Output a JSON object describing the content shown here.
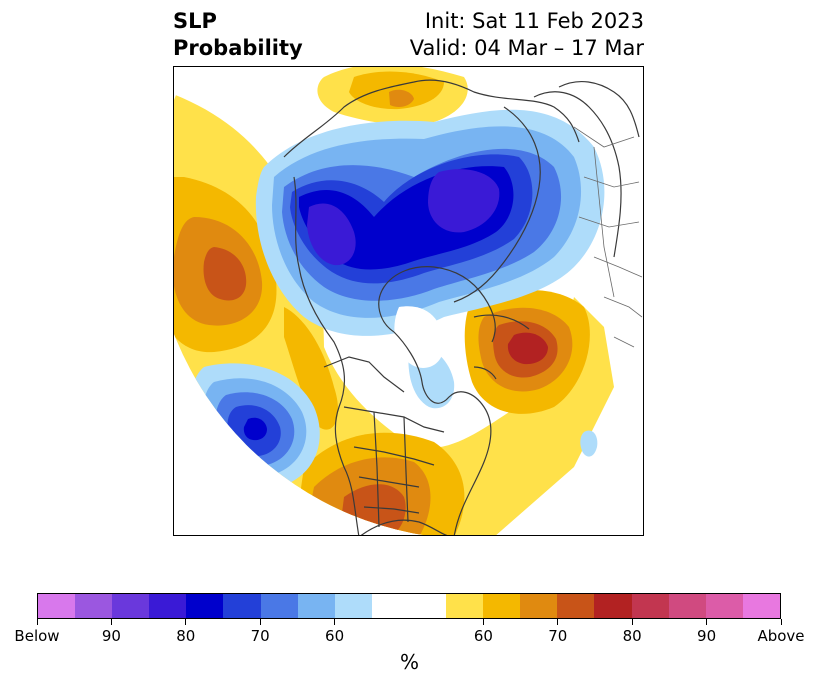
{
  "header": {
    "title_line1": "SLP",
    "title_line2": "Probability",
    "init": "Init: Sat 11 Feb 2023",
    "valid": "Valid: 04 Mar – 17 Mar"
  },
  "map": {
    "projection": "polar-stereographic-north",
    "colors": {
      "land_line": "#3a3a3a",
      "below_light": "#aedcfa",
      "below_mid": "#78b4f2",
      "below_60": "#4a78e6",
      "below_70": "#2340d8",
      "below_80": "#0000cc",
      "below_85": "#3a1ad6",
      "above_light": "#ffe14a",
      "above_60": "#f4b800",
      "above_70": "#e08a10",
      "above_75": "#c85418",
      "above_80": "#b22222"
    }
  },
  "colorbar": {
    "colors": [
      "#d878ec",
      "#9b57e0",
      "#6a38dc",
      "#3a1ad6",
      "#0000cc",
      "#2340d8",
      "#4a78e6",
      "#78b4f2",
      "#aedcfa",
      "#ffffff",
      "#ffe14a",
      "#f4b800",
      "#e08a10",
      "#c85418",
      "#b22222",
      "#c23650",
      "#d04a80",
      "#dc5ca8",
      "#e878e0"
    ],
    "tick_labels": [
      "Below",
      "90",
      "80",
      "70",
      "60",
      "60",
      "70",
      "80",
      "90",
      "Above"
    ],
    "unit": "%"
  }
}
